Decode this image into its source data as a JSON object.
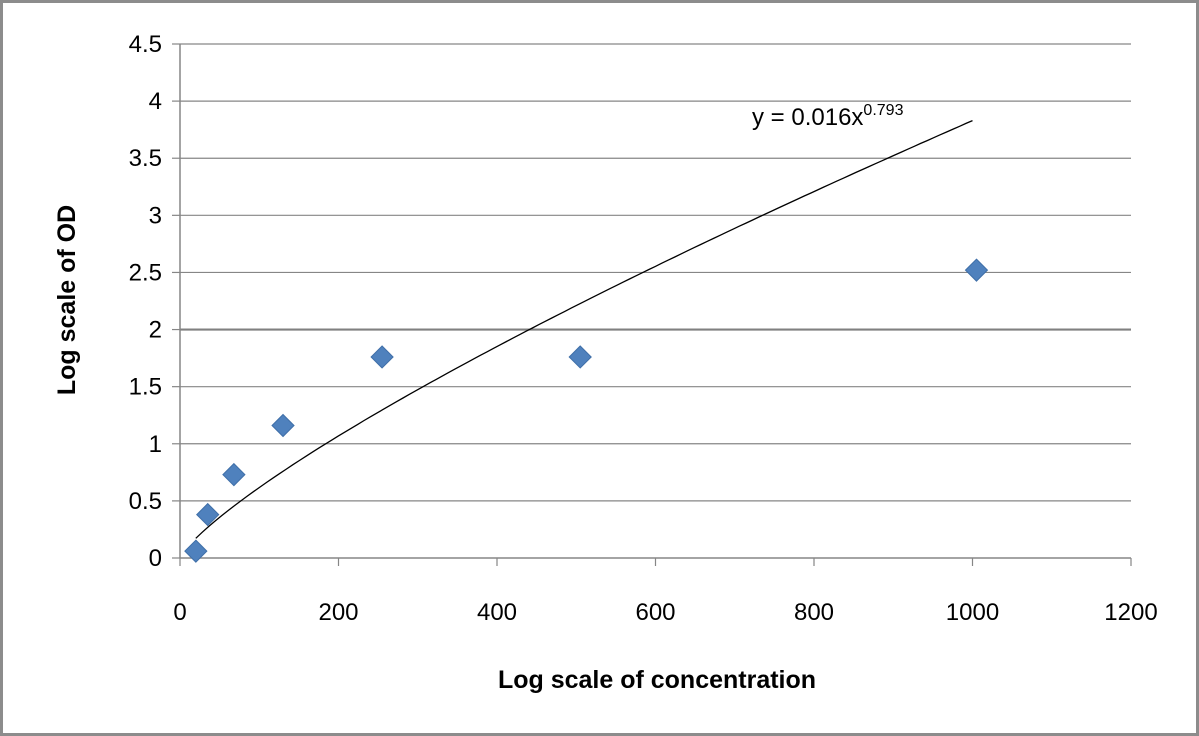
{
  "chart_data": {
    "type": "scatter",
    "xlabel": "Log scale of concentration",
    "ylabel": "Log scale of OD",
    "xlim": [
      0,
      1200
    ],
    "ylim": [
      0,
      4.5
    ],
    "x_ticks": [
      "0",
      "200",
      "400",
      "600",
      "800",
      "1000",
      "1200"
    ],
    "y_ticks": [
      "0",
      "0.5",
      "1",
      "1.5",
      "2",
      "2.5",
      "3",
      "3.5",
      "4",
      "4.5"
    ],
    "grid": "horizontal",
    "series": [
      {
        "marker": "diamond",
        "color": "#4f81bd",
        "points": [
          {
            "x": 20,
            "y": 0.06
          },
          {
            "x": 35,
            "y": 0.38
          },
          {
            "x": 68,
            "y": 0.73
          },
          {
            "x": 130,
            "y": 1.16
          },
          {
            "x": 255,
            "y": 1.76
          },
          {
            "x": 505,
            "y": 1.76
          },
          {
            "x": 1005,
            "y": 2.52
          }
        ]
      }
    ],
    "trendline": {
      "type": "power",
      "coefficient": 0.016,
      "exponent": 0.793,
      "x_range": [
        20,
        1000
      ],
      "color": "#000000",
      "equation_prefix": "y = 0.016x",
      "equation_exponent": "0.793"
    },
    "highlight_line": {
      "y": 2,
      "color": "#808080"
    }
  }
}
